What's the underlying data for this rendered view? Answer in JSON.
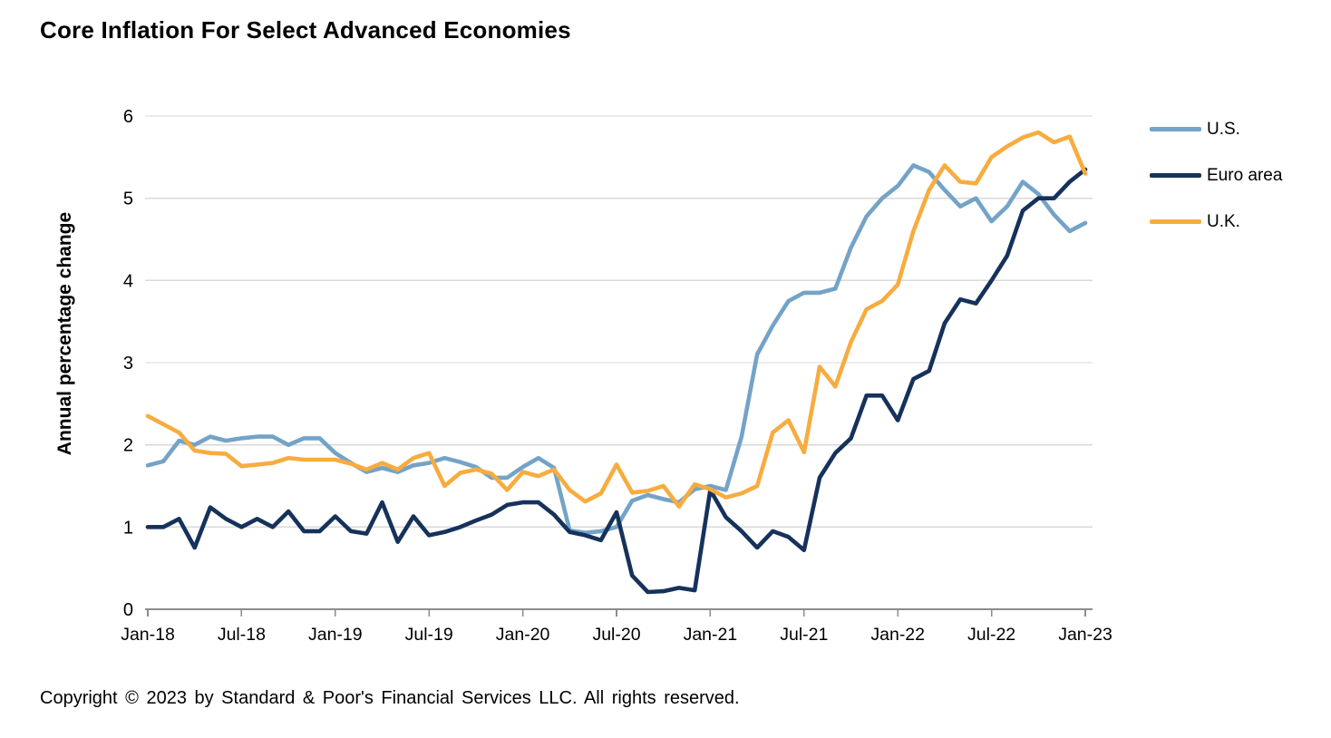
{
  "title": "Core Inflation For Select Advanced Economies",
  "y_axis": {
    "title": "Annual percentage change",
    "min": 0,
    "max": 6,
    "tick_interval": 1,
    "tick_labels": [
      "0",
      "1",
      "2",
      "3",
      "4",
      "5",
      "6"
    ]
  },
  "x_axis": {
    "tick_labels": [
      "Jan-18",
      "Jul-18",
      "Jan-19",
      "Jul-19",
      "Jan-20",
      "Jul-20",
      "Jan-21",
      "Jul-21",
      "Jan-22",
      "Jul-22",
      "Jan-23"
    ]
  },
  "legend": {
    "items": [
      {
        "key": "us",
        "label": "U.S.",
        "color": "#74A3C8"
      },
      {
        "key": "euro-area",
        "label": "Euro area",
        "color": "#16325B"
      },
      {
        "key": "uk",
        "label": "U.K.",
        "color": "#F7AC40"
      }
    ]
  },
  "footer": {
    "copyright": "Copyright © 2023 by Standard & Poor's Financial Services LLC. All rights reserved."
  },
  "chart_data": {
    "type": "line",
    "title": "Core Inflation For Select Advanced Economies",
    "ylabel": "Annual percentage change",
    "xlabel": "",
    "ylim": [
      0,
      6
    ],
    "grid": "horizontal",
    "legend_position": "right",
    "x": [
      "Jan-18",
      "Feb-18",
      "Mar-18",
      "Apr-18",
      "May-18",
      "Jun-18",
      "Jul-18",
      "Aug-18",
      "Sep-18",
      "Oct-18",
      "Nov-18",
      "Dec-18",
      "Jan-19",
      "Feb-19",
      "Mar-19",
      "Apr-19",
      "May-19",
      "Jun-19",
      "Jul-19",
      "Aug-19",
      "Sep-19",
      "Oct-19",
      "Nov-19",
      "Dec-19",
      "Jan-20",
      "Feb-20",
      "Mar-20",
      "Apr-20",
      "May-20",
      "Jun-20",
      "Jul-20",
      "Aug-20",
      "Sep-20",
      "Oct-20",
      "Nov-20",
      "Dec-20",
      "Jan-21",
      "Feb-21",
      "Mar-21",
      "Apr-21",
      "May-21",
      "Jun-21",
      "Jul-21",
      "Aug-21",
      "Sep-21",
      "Oct-21",
      "Nov-21",
      "Dec-21",
      "Jan-22",
      "Feb-22",
      "Mar-22",
      "Apr-22",
      "May-22",
      "Jun-22",
      "Jul-22",
      "Aug-22",
      "Sep-22",
      "Oct-22",
      "Nov-22",
      "Dec-22",
      "Jan-23"
    ],
    "series": [
      {
        "name": "U.S.",
        "key": "us",
        "color": "#74A3C8",
        "values": [
          1.75,
          1.8,
          2.05,
          2.0,
          2.1,
          2.05,
          2.08,
          2.1,
          2.1,
          2.0,
          2.08,
          2.08,
          1.9,
          1.78,
          1.67,
          1.72,
          1.67,
          1.75,
          1.78,
          1.84,
          1.79,
          1.73,
          1.6,
          1.6,
          1.73,
          1.84,
          1.72,
          0.96,
          0.93,
          0.95,
          1.0,
          1.32,
          1.39,
          1.34,
          1.3,
          1.46,
          1.5,
          1.45,
          2.1,
          3.1,
          3.45,
          3.75,
          3.85,
          3.85,
          3.9,
          4.4,
          4.78,
          5.0,
          5.15,
          5.4,
          5.32,
          5.1,
          4.9,
          5.0,
          4.72,
          4.9,
          5.2,
          5.05,
          4.8,
          4.6,
          4.7
        ]
      },
      {
        "name": "Euro area",
        "key": "euro-area",
        "color": "#16325B",
        "values": [
          1.0,
          1.0,
          1.1,
          0.75,
          1.24,
          1.1,
          1.0,
          1.1,
          1.0,
          1.19,
          0.95,
          0.95,
          1.13,
          0.95,
          0.92,
          1.3,
          0.82,
          1.13,
          0.9,
          0.94,
          1.0,
          1.08,
          1.15,
          1.27,
          1.3,
          1.3,
          1.15,
          0.94,
          0.9,
          0.84,
          1.18,
          0.41,
          0.21,
          0.22,
          0.26,
          0.23,
          1.45,
          1.12,
          0.95,
          0.75,
          0.95,
          0.88,
          0.72,
          1.6,
          1.9,
          2.08,
          2.6,
          2.6,
          2.3,
          2.8,
          2.9,
          3.48,
          3.77,
          3.72,
          4.0,
          4.3,
          4.85,
          5.0,
          5.0,
          5.2,
          5.35
        ]
      },
      {
        "name": "U.K.",
        "key": "uk",
        "color": "#F7AC40",
        "values": [
          2.35,
          2.25,
          2.15,
          1.93,
          1.9,
          1.89,
          1.74,
          1.76,
          1.78,
          1.84,
          1.82,
          1.82,
          1.82,
          1.77,
          1.7,
          1.78,
          1.7,
          1.84,
          1.9,
          1.5,
          1.66,
          1.7,
          1.65,
          1.45,
          1.67,
          1.62,
          1.7,
          1.45,
          1.31,
          1.41,
          1.76,
          1.42,
          1.44,
          1.5,
          1.25,
          1.52,
          1.46,
          1.36,
          1.41,
          1.5,
          2.15,
          2.3,
          1.91,
          2.95,
          2.71,
          3.25,
          3.65,
          3.75,
          3.95,
          4.6,
          5.1,
          5.4,
          5.2,
          5.18,
          5.5,
          5.63,
          5.74,
          5.8,
          5.68,
          5.75,
          5.3
        ]
      }
    ]
  },
  "plot_geometry_note": "y gridlines at integers 0-6; ticks every 6 months"
}
